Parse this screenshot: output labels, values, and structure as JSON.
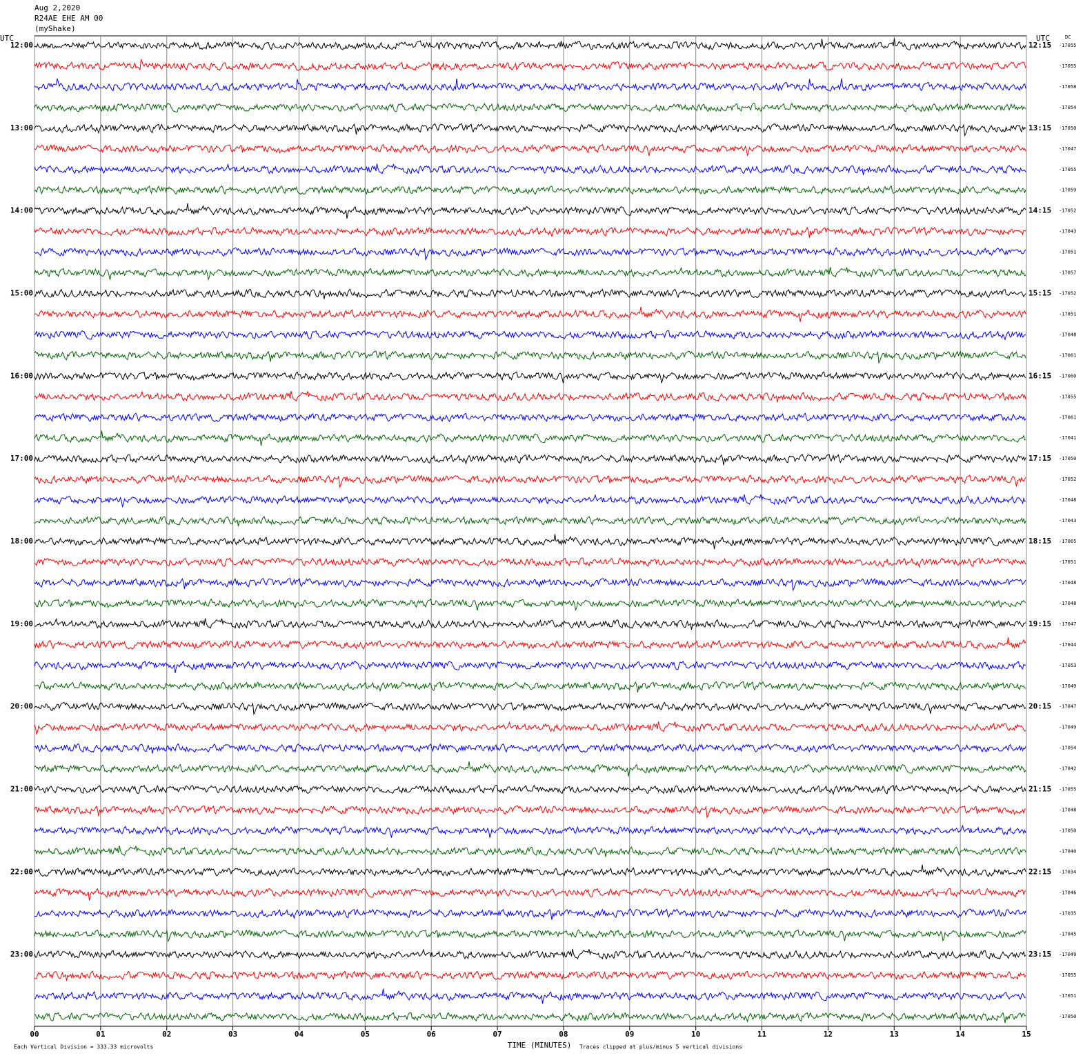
{
  "chart_data": {
    "type": "helicorder",
    "title_lines": [
      "Aug 2,2020",
      "R24AE EHE AM 00",
      "(myShake)"
    ],
    "left_axis_title": "UTC",
    "right_axis_title": "UTC",
    "dc_label": "DC",
    "left_labels": [
      "12:00",
      "13:00",
      "14:00",
      "15:00",
      "16:00",
      "17:00",
      "18:00",
      "19:00",
      "20:00",
      "21:00",
      "22:00",
      "23:00"
    ],
    "right_labels": [
      "12:15",
      "13:15",
      "14:15",
      "15:15",
      "16:15",
      "17:15",
      "18:15",
      "19:15",
      "20:15",
      "21:15",
      "22:15",
      "23:15"
    ],
    "dc_values": [
      -17055,
      -17055,
      -17058,
      -17054,
      -17050,
      -17047,
      -17055,
      -17059,
      -17052,
      -17043,
      -17051,
      -17057,
      -17052,
      -17051,
      -17048,
      -17061,
      -17060,
      -17055,
      -17061,
      -17041,
      -17050,
      -17052,
      -17048,
      -17043,
      -17065,
      -17051,
      -17048,
      -17048,
      -17047,
      -17044,
      -17053,
      -17049,
      -17047,
      -17049,
      -17054,
      -17042,
      -17055,
      -17048,
      -17050,
      -17040,
      -17034,
      -17046,
      -17035,
      -17045,
      -17049,
      -17055,
      -17051,
      -17050
    ],
    "colors": [
      "#000000",
      "#ff0000",
      "#0000ff",
      "#006400"
    ],
    "xlabel": "TIME (MINUTES)",
    "xlim": [
      0,
      15
    ],
    "xticks": [
      {
        "value": 0,
        "label": "00"
      },
      {
        "value": 1,
        "label": "01"
      },
      {
        "value": 2,
        "label": "02"
      },
      {
        "value": 3,
        "label": "03"
      },
      {
        "value": 4,
        "label": "04"
      },
      {
        "value": 5,
        "label": "05"
      },
      {
        "value": 6,
        "label": "06"
      },
      {
        "value": 7,
        "label": "07"
      },
      {
        "value": 8,
        "label": "08"
      },
      {
        "value": 9,
        "label": "09"
      },
      10,
      11,
      12,
      13,
      14,
      15
    ],
    "grid": true,
    "footnote_left": "Each Vertical Division =  333.33 microvolts",
    "footnote_right": "Traces clipped at plus/minus 5 vertical divisions"
  }
}
